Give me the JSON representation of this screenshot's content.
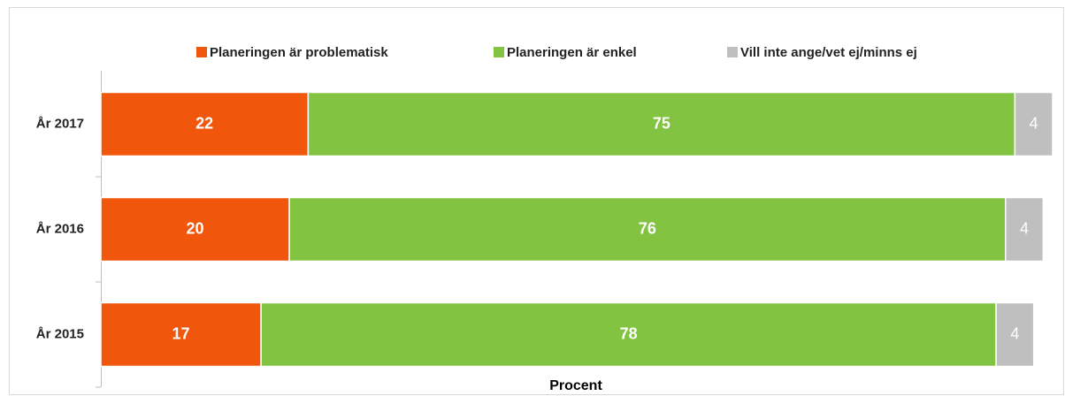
{
  "chart_data": {
    "type": "stacked_barh",
    "categories": [
      "År 2017",
      "År 2016",
      "År 2015"
    ],
    "series": [
      {
        "name": "Planeringen är problematisk",
        "color": "#f0560c",
        "values": [
          22,
          20,
          17
        ]
      },
      {
        "name": "Planeringen är enkel",
        "color": "#82c341",
        "values": [
          75,
          76,
          78
        ]
      },
      {
        "name": "Vill inte ange/vet ej/minns ej",
        "color": "#bfbfbf",
        "values": [
          4,
          4,
          4
        ]
      }
    ],
    "xlabel": "Procent",
    "xlim": [
      0,
      101
    ],
    "legend": "top"
  }
}
